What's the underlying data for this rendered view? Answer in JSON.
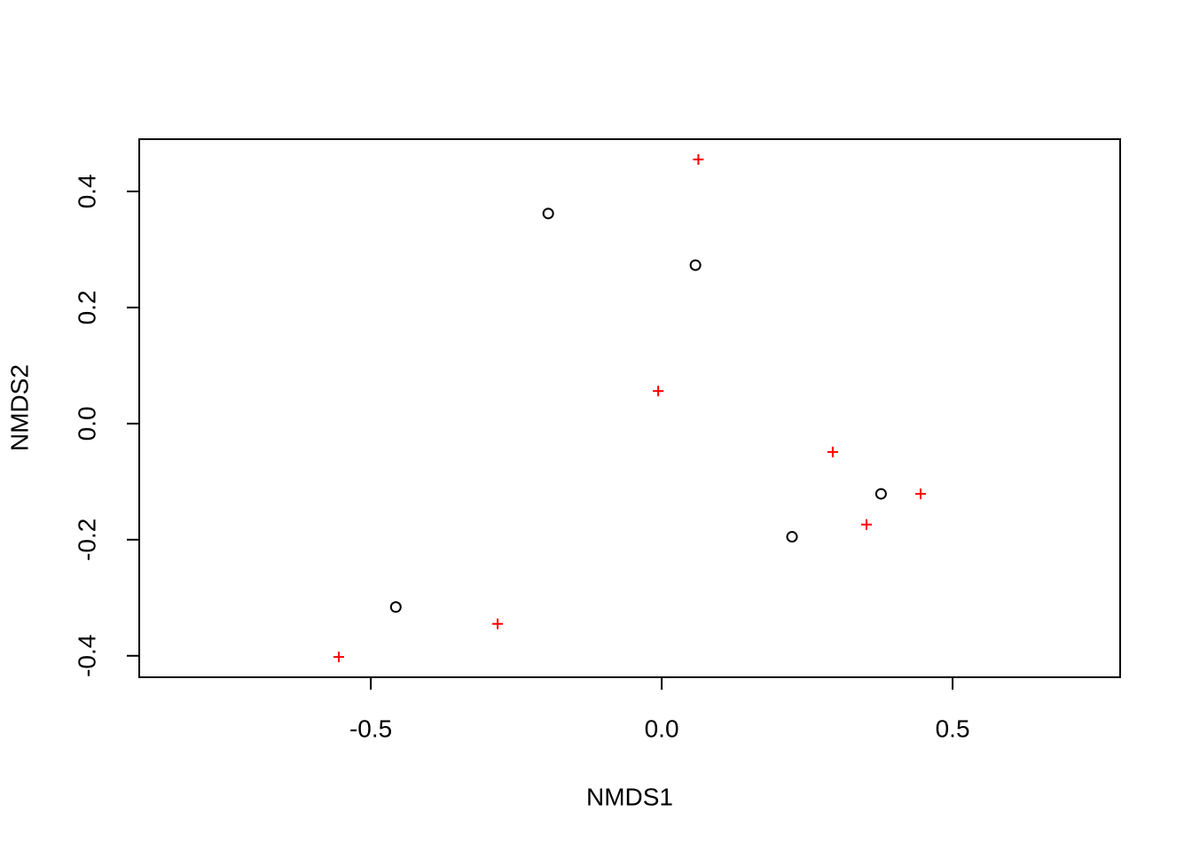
{
  "chart_data": {
    "type": "scatter",
    "xlabel": "NMDS1",
    "ylabel": "NMDS2",
    "xlim": [
      -0.898,
      0.788
    ],
    "ylim": [
      -0.437,
      0.49
    ],
    "xticks": [
      -0.5,
      {
        "value": 0,
        "label": "0.0"
      },
      0.5
    ],
    "yticks": [
      -0.4,
      -0.2,
      {
        "value": 0,
        "label": "0.0"
      },
      0.2,
      0.4
    ],
    "series": [
      {
        "color": "#000000",
        "marker": "circle",
        "x": [
          -0.195,
          0.058,
          0.377,
          0.224,
          -0.457
        ],
        "y": [
          0.362,
          0.273,
          -0.121,
          -0.195,
          -0.316
        ]
      },
      {
        "color": "#ff0000",
        "marker": "plus",
        "x": [
          0.063,
          -0.006,
          0.294,
          0.445,
          0.352,
          -0.282,
          -0.555
        ],
        "y": [
          0.455,
          0.056,
          -0.049,
          -0.121,
          -0.174,
          -0.345,
          -0.402
        ]
      }
    ]
  }
}
